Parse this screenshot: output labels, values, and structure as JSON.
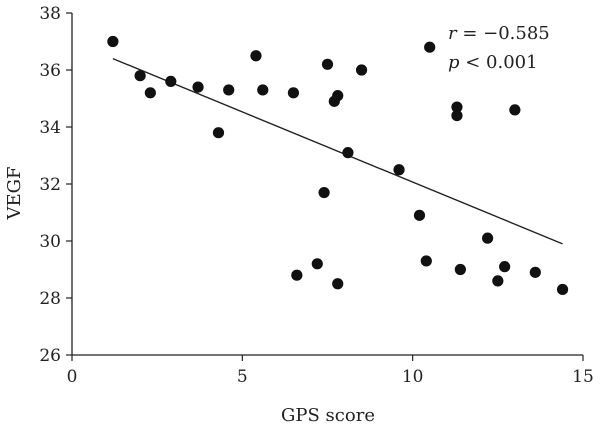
{
  "chart_data": {
    "type": "scatter",
    "xlabel": "GPS score",
    "ylabel": "VEGF",
    "xlim": [
      0,
      15
    ],
    "ylim": [
      26,
      38
    ],
    "xticks": [
      0,
      5,
      10,
      15
    ],
    "yticks": [
      26,
      28,
      30,
      32,
      34,
      36,
      38
    ],
    "grid": false,
    "points": [
      {
        "x": 1.2,
        "y": 37.0
      },
      {
        "x": 2.0,
        "y": 35.8
      },
      {
        "x": 2.3,
        "y": 35.2
      },
      {
        "x": 2.9,
        "y": 35.6
      },
      {
        "x": 3.7,
        "y": 35.4
      },
      {
        "x": 4.3,
        "y": 33.8
      },
      {
        "x": 4.6,
        "y": 35.3
      },
      {
        "x": 5.4,
        "y": 36.5
      },
      {
        "x": 5.6,
        "y": 35.3
      },
      {
        "x": 6.5,
        "y": 35.2
      },
      {
        "x": 6.6,
        "y": 28.8
      },
      {
        "x": 7.2,
        "y": 29.2
      },
      {
        "x": 7.4,
        "y": 31.7
      },
      {
        "x": 7.5,
        "y": 36.2
      },
      {
        "x": 7.7,
        "y": 34.9
      },
      {
        "x": 7.8,
        "y": 35.1
      },
      {
        "x": 7.8,
        "y": 28.5
      },
      {
        "x": 8.1,
        "y": 33.1
      },
      {
        "x": 8.5,
        "y": 36.0
      },
      {
        "x": 9.6,
        "y": 32.5
      },
      {
        "x": 10.2,
        "y": 30.9
      },
      {
        "x": 10.4,
        "y": 29.3
      },
      {
        "x": 10.5,
        "y": 36.8
      },
      {
        "x": 11.3,
        "y": 34.7
      },
      {
        "x": 11.3,
        "y": 34.4
      },
      {
        "x": 11.4,
        "y": 29.0
      },
      {
        "x": 12.2,
        "y": 30.1
      },
      {
        "x": 12.5,
        "y": 28.6
      },
      {
        "x": 12.7,
        "y": 29.1
      },
      {
        "x": 13.0,
        "y": 34.6
      },
      {
        "x": 13.6,
        "y": 28.9
      },
      {
        "x": 14.4,
        "y": 28.3
      }
    ],
    "trendline": {
      "x": [
        1.2,
        14.4
      ],
      "y": [
        36.4,
        29.9
      ]
    },
    "annotations": {
      "r_symbol": "r",
      "r_value": " = −0.585",
      "p_symbol": "p",
      "p_value": " < 0.001"
    }
  }
}
